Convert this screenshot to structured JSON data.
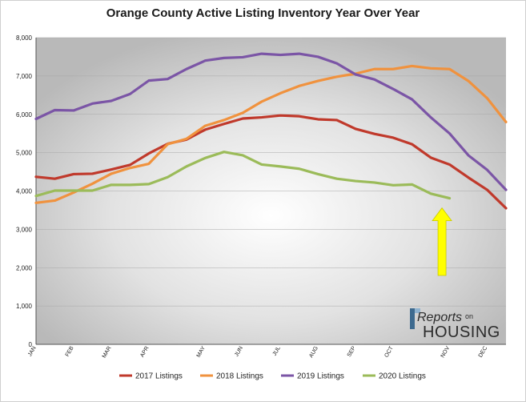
{
  "chart_data": {
    "type": "line",
    "title": "Orange County Active Listing Inventory Year Over Year",
    "ylim": [
      0,
      8000
    ],
    "ytick_labels": [
      "0",
      "1,000",
      "2,000",
      "3,000",
      "4,000",
      "5,000",
      "6,000",
      "7,000",
      "8,000"
    ],
    "yticks": [
      0,
      1000,
      2000,
      3000,
      4000,
      5000,
      6000,
      7000,
      8000
    ],
    "x_month_labels": [
      "JAN",
      "FEB",
      "MAR",
      "APR",
      "MAY",
      "JUN",
      "JUL",
      "AUG",
      "SEP",
      "OCT",
      "NOV",
      "DEC"
    ],
    "x_month_positions": [
      0,
      4,
      8,
      12,
      18,
      22,
      26,
      30,
      34,
      38,
      44,
      48
    ],
    "x_week_range": [
      0,
      50
    ],
    "grid": true,
    "legend_position": "bottom",
    "series": [
      {
        "name": "2017 Listings",
        "color": "#c0392b",
        "values": [
          4370,
          4320,
          4440,
          4450,
          4560,
          4680,
          4980,
          5230,
          5340,
          5600,
          5750,
          5890,
          5920,
          5970,
          5950,
          5870,
          5850,
          5620,
          5490,
          5390,
          5220,
          4870,
          4690,
          4350,
          4030,
          3550
        ]
      },
      {
        "name": "2018 Listings",
        "color": "#f0923e",
        "values": [
          3690,
          3750,
          3960,
          4190,
          4450,
          4600,
          4710,
          5220,
          5360,
          5700,
          5850,
          6040,
          6330,
          6550,
          6740,
          6870,
          6980,
          7060,
          7180,
          7180,
          7260,
          7200,
          7180,
          6870,
          6420,
          5800
        ]
      },
      {
        "name": "2019 Listings",
        "color": "#7b55a6",
        "values": [
          5880,
          6110,
          6100,
          6280,
          6350,
          6530,
          6880,
          6920,
          7180,
          7400,
          7470,
          7490,
          7580,
          7550,
          7580,
          7500,
          7330,
          7040,
          6910,
          6660,
          6390,
          5920,
          5500,
          4930,
          4550,
          4030
        ]
      },
      {
        "name": "2020 Listings",
        "color": "#9bbb59",
        "values": [
          3870,
          4010,
          4010,
          4010,
          4160,
          4160,
          4180,
          4360,
          4640,
          4860,
          5020,
          4930,
          4690,
          4640,
          4580,
          4440,
          4320,
          4260,
          4220,
          4150,
          4170,
          3930,
          3810
        ]
      }
    ],
    "annotation_arrow": {
      "color": "#ffff00",
      "points_to_week": 42,
      "value": 3810
    }
  },
  "logo": {
    "reports": "Reports",
    "on": "on",
    "housing": "HOUSING"
  }
}
